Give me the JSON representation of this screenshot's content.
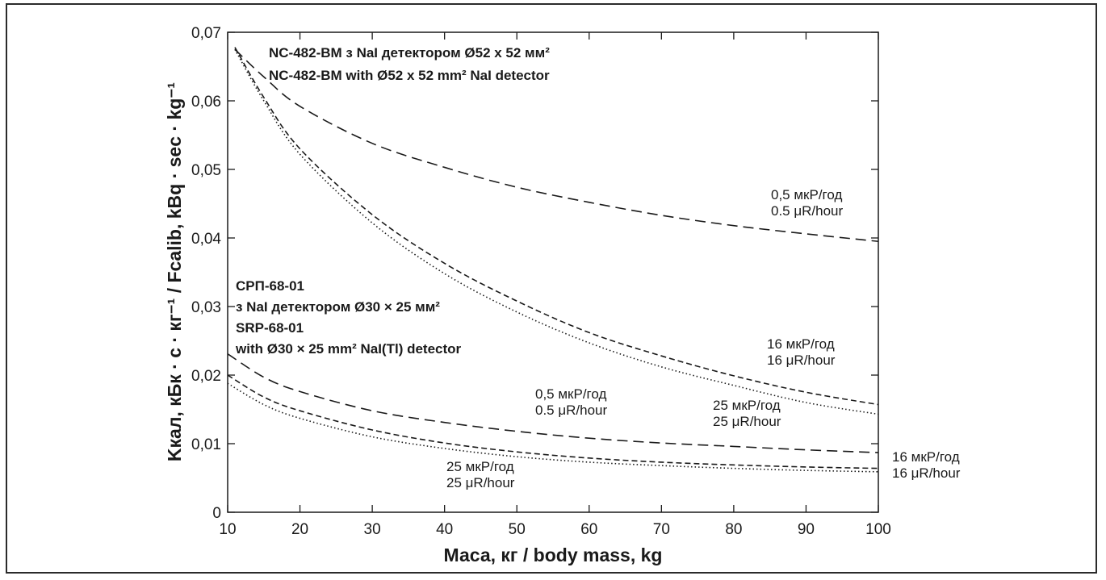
{
  "chart_data": {
    "type": "line",
    "xlabel": "Маса, кг / body mass, kg",
    "ylabel": "Kкал, кБк · с · кг⁻¹ / Fcalib, kBq · sec · kg⁻¹",
    "xlim": [
      10,
      100
    ],
    "ylim": [
      0,
      0.07
    ],
    "x_ticks": [
      "10",
      "20",
      "30",
      "40",
      "50",
      "60",
      "70",
      "80",
      "90",
      "100"
    ],
    "y_ticks": [
      "0",
      "0,01",
      "0,02",
      "0,03",
      "0,04",
      "0,05",
      "0,06",
      "0,07"
    ],
    "grid": false,
    "annotations": {
      "nc_line1": "NC-482-BM з NaI детектором Ø52 x 52 мм²",
      "nc_line2": "NC-482-BM with Ø52 x 52 mm² NaI detector",
      "srp_line1": "СРП-68-01",
      "srp_line2": "з NaI детектором Ø30 × 25 мм²",
      "srp_line3": "SRP-68-01",
      "srp_line4": "with Ø30 × 25 mm² NaI(Tl) detector"
    },
    "series": [
      {
        "label_lines": [
          "0,5 мкР/год",
          "0.5 μR/hour"
        ],
        "style": "long-dash",
        "x": [
          11,
          15,
          20,
          30,
          40,
          50,
          60,
          70,
          80,
          90,
          100
        ],
        "y": [
          0.0675,
          0.0635,
          0.0592,
          0.0538,
          0.0503,
          0.0474,
          0.0452,
          0.0433,
          0.0418,
          0.0406,
          0.0395
        ]
      },
      {
        "label_lines": [
          "16 мкР/год",
          "16 μR/hour"
        ],
        "style": "short-dash",
        "x": [
          11,
          15,
          20,
          30,
          40,
          50,
          60,
          70,
          80,
          90,
          100
        ],
        "y": [
          0.0678,
          0.0605,
          0.053,
          0.0434,
          0.0363,
          0.0308,
          0.0262,
          0.0228,
          0.0199,
          0.0175,
          0.0157
        ]
      },
      {
        "label_lines": [
          "25 мкР/год",
          "25 μR/hour"
        ],
        "style": "dotted",
        "x": [
          11,
          15,
          20,
          30,
          40,
          50,
          60,
          70,
          80,
          90,
          100
        ],
        "y": [
          0.0675,
          0.06,
          0.0522,
          0.0422,
          0.0348,
          0.0292,
          0.0247,
          0.0212,
          0.0185,
          0.016,
          0.0143
        ]
      },
      {
        "label_lines": [
          "0,5 мкР/год",
          "0.5 μR/hour"
        ],
        "style": "long-dash",
        "x": [
          10,
          15,
          20,
          30,
          40,
          50,
          60,
          70,
          80,
          90,
          100
        ],
        "y": [
          0.0231,
          0.0197,
          0.0176,
          0.0148,
          0.0131,
          0.0118,
          0.0108,
          0.0101,
          0.0096,
          0.0091,
          0.0087
        ]
      },
      {
        "label_lines": [
          "16 мкР/год",
          "16 μR/hour"
        ],
        "style": "short-dash",
        "x": [
          10,
          15,
          20,
          30,
          40,
          50,
          60,
          70,
          80,
          90,
          100
        ],
        "y": [
          0.02,
          0.0168,
          0.0148,
          0.012,
          0.0101,
          0.0088,
          0.0079,
          0.0073,
          0.0069,
          0.0066,
          0.0064
        ]
      },
      {
        "label_lines": [
          "25 мкР/год",
          "25 μR/hour"
        ],
        "style": "dotted",
        "x": [
          10,
          15,
          20,
          30,
          40,
          50,
          60,
          70,
          80,
          90,
          100
        ],
        "y": [
          0.0188,
          0.0157,
          0.0137,
          0.011,
          0.0093,
          0.0081,
          0.0073,
          0.0068,
          0.0064,
          0.0061,
          0.0059
        ]
      }
    ]
  }
}
